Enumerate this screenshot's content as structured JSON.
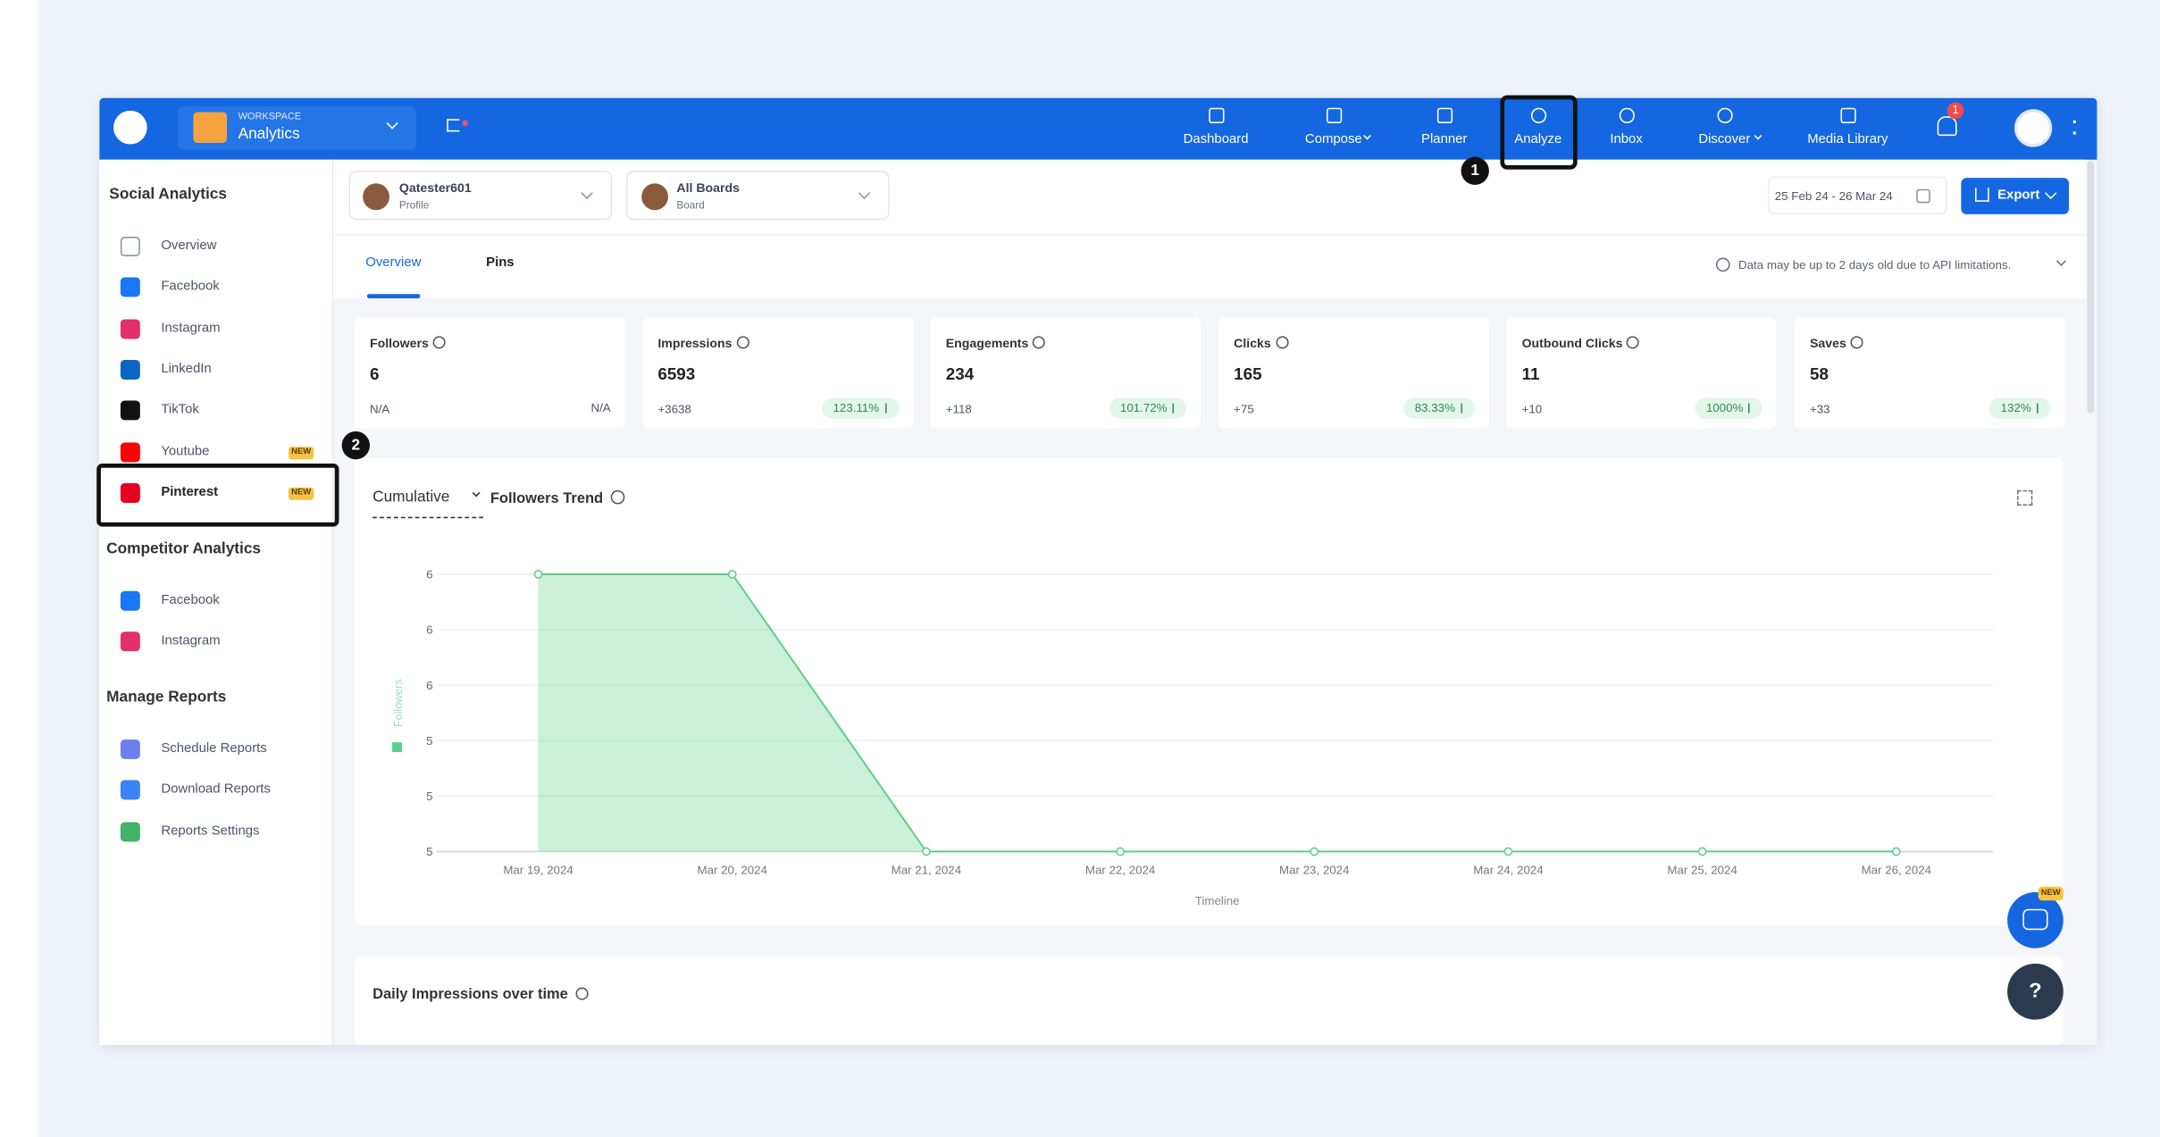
{
  "header": {
    "workspace_label": "WORKSPACE",
    "workspace_name": "Analytics",
    "nav": [
      "Dashboard",
      "Compose",
      "Planner",
      "Analyze",
      "Inbox",
      "Discover",
      "Media Library"
    ],
    "notifications": "1"
  },
  "annotations": [
    "1",
    "2"
  ],
  "sidebar": {
    "sections": [
      {
        "title": "Social Analytics",
        "items": [
          {
            "label": "Overview"
          },
          {
            "label": "Facebook"
          },
          {
            "label": "Instagram"
          },
          {
            "label": "LinkedIn"
          },
          {
            "label": "TikTok"
          },
          {
            "label": "Youtube",
            "badge": "NEW"
          },
          {
            "label": "Pinterest",
            "badge": "NEW"
          }
        ]
      },
      {
        "title": "Competitor Analytics",
        "items": [
          {
            "label": "Facebook"
          },
          {
            "label": "Instagram"
          }
        ]
      },
      {
        "title": "Manage Reports",
        "items": [
          {
            "label": "Schedule Reports"
          },
          {
            "label": "Download Reports"
          },
          {
            "label": "Reports Settings"
          }
        ]
      }
    ]
  },
  "filters": {
    "profile": {
      "name": "Qatester601",
      "type": "Profile"
    },
    "boards": {
      "name": "All Boards",
      "type": "Board"
    },
    "date_range": "25 Feb 24 - 26 Mar 24",
    "export": "Export"
  },
  "tabs": [
    "Overview",
    "Pins"
  ],
  "notice": "Data may be up to 2 days old due to API limitations.",
  "stats": [
    {
      "label": "Followers",
      "value": 6,
      "change": "N/A",
      "percent": "N/A"
    },
    {
      "label": "Impressions",
      "value": 6593,
      "change": "+3638",
      "percent": "123.11%"
    },
    {
      "label": "Engagements",
      "value": 234,
      "change": "+118",
      "percent": "101.72%"
    },
    {
      "label": "Clicks",
      "value": 165,
      "change": "+75",
      "percent": "83.33%"
    },
    {
      "label": "Outbound Clicks",
      "value": 11,
      "change": "+10",
      "percent": "1000%"
    },
    {
      "label": "Saves",
      "value": 58,
      "change": "+33",
      "percent": "132%"
    }
  ],
  "chart_card": {
    "mode": "Cumulative",
    "title": "Followers Trend"
  },
  "chart_data": {
    "type": "area",
    "categories": [
      "Mar 19, 2024",
      "Mar 20, 2024",
      "Mar 21, 2024",
      "Mar 22, 2024",
      "Mar 23, 2024",
      "Mar 24, 2024",
      "Mar 25, 2024",
      "Mar 26, 2024"
    ],
    "series": [
      {
        "name": "Followers",
        "color": "#5fcf8a",
        "values": [
          6,
          6,
          5,
          5,
          5,
          5,
          5,
          5
        ]
      }
    ],
    "ylim": [
      5,
      6
    ],
    "yticks": [
      5,
      {
        "value": 5.2,
        "label": "5"
      },
      {
        "value": 5.4,
        "label": "5"
      },
      {
        "value": 5.6,
        "label": "6"
      },
      {
        "value": 5.8,
        "label": "6"
      },
      6
    ],
    "x_label": "Timeline",
    "grid": true
  },
  "next_card": {
    "title": "Daily Impressions over time"
  },
  "assistant_badge": "NEW",
  "help": "?"
}
